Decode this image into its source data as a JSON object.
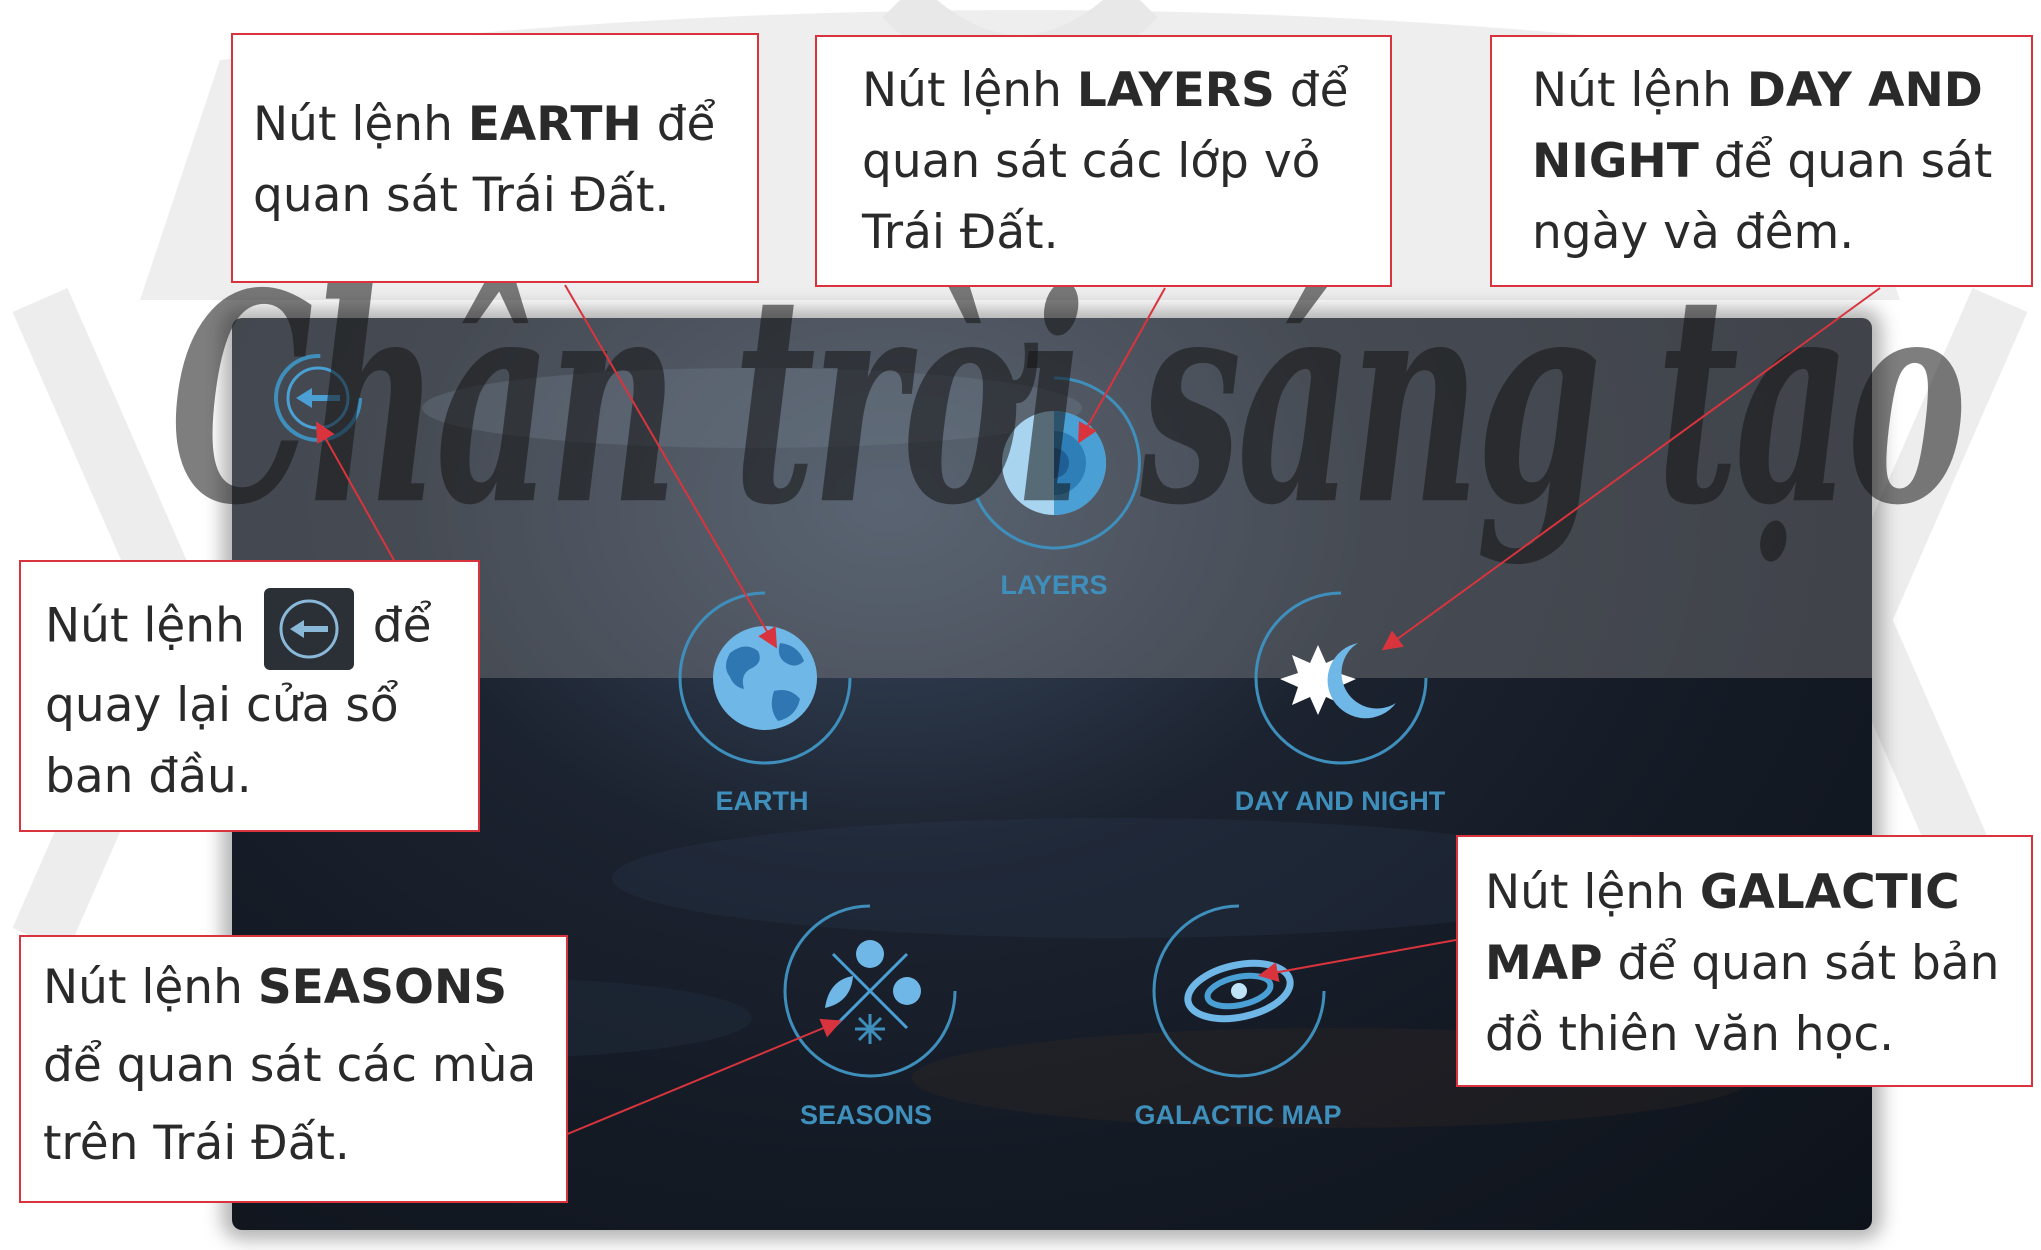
{
  "watermark": {
    "text": "Chân trời sáng tạo"
  },
  "menu": {
    "back": {
      "icon": "back-arrow-icon"
    },
    "layers": {
      "label": "LAYERS",
      "icon": "layers-icon"
    },
    "earth": {
      "label": "EARTH",
      "icon": "earth-globe-icon"
    },
    "day_night": {
      "label": "DAY AND NIGHT",
      "icon": "sun-moon-icon"
    },
    "seasons": {
      "label": "SEASONS",
      "icon": "seasons-icon"
    },
    "galactic_map": {
      "label": "GALACTIC MAP",
      "icon": "galaxy-icon"
    }
  },
  "callouts": {
    "earth": {
      "prefix": "Nút lệnh ",
      "bold": "EARTH",
      "suffix_line1": " để",
      "line2": "quan sát Trái Đất."
    },
    "layers": {
      "prefix": "Nút lệnh ",
      "bold": "LAYERS",
      "suffix_line1": " để",
      "line2": "quan sát các lớp vỏ",
      "line3": "Trái Đất."
    },
    "day_night": {
      "prefix": "Nút lệnh ",
      "bold_line1": "DAY AND",
      "bold_line2": "NIGHT",
      "suffix_line2": " để quan sát",
      "line3": "ngày và đêm."
    },
    "back": {
      "prefix": "Nút lệnh ",
      "suffix_line1": " để",
      "line2": "quay lại cửa sổ",
      "line3": "ban đầu."
    },
    "seasons": {
      "prefix": "Nút  lệnh  ",
      "bold": "SEASONS",
      "line2": "để quan sát các mùa",
      "line3": "trên Trái Đất."
    },
    "galactic": {
      "prefix": "Nút lệnh ",
      "bold_line1": "GALACTIC",
      "bold_line2": "MAP",
      "suffix_line2": " để quan sát bản",
      "line3": "đồ thiên văn học."
    }
  },
  "colors": {
    "accent": "#4a9fd4",
    "label": "#3f8fbd",
    "callout_border": "#d9343d",
    "panel": "#161c26"
  }
}
